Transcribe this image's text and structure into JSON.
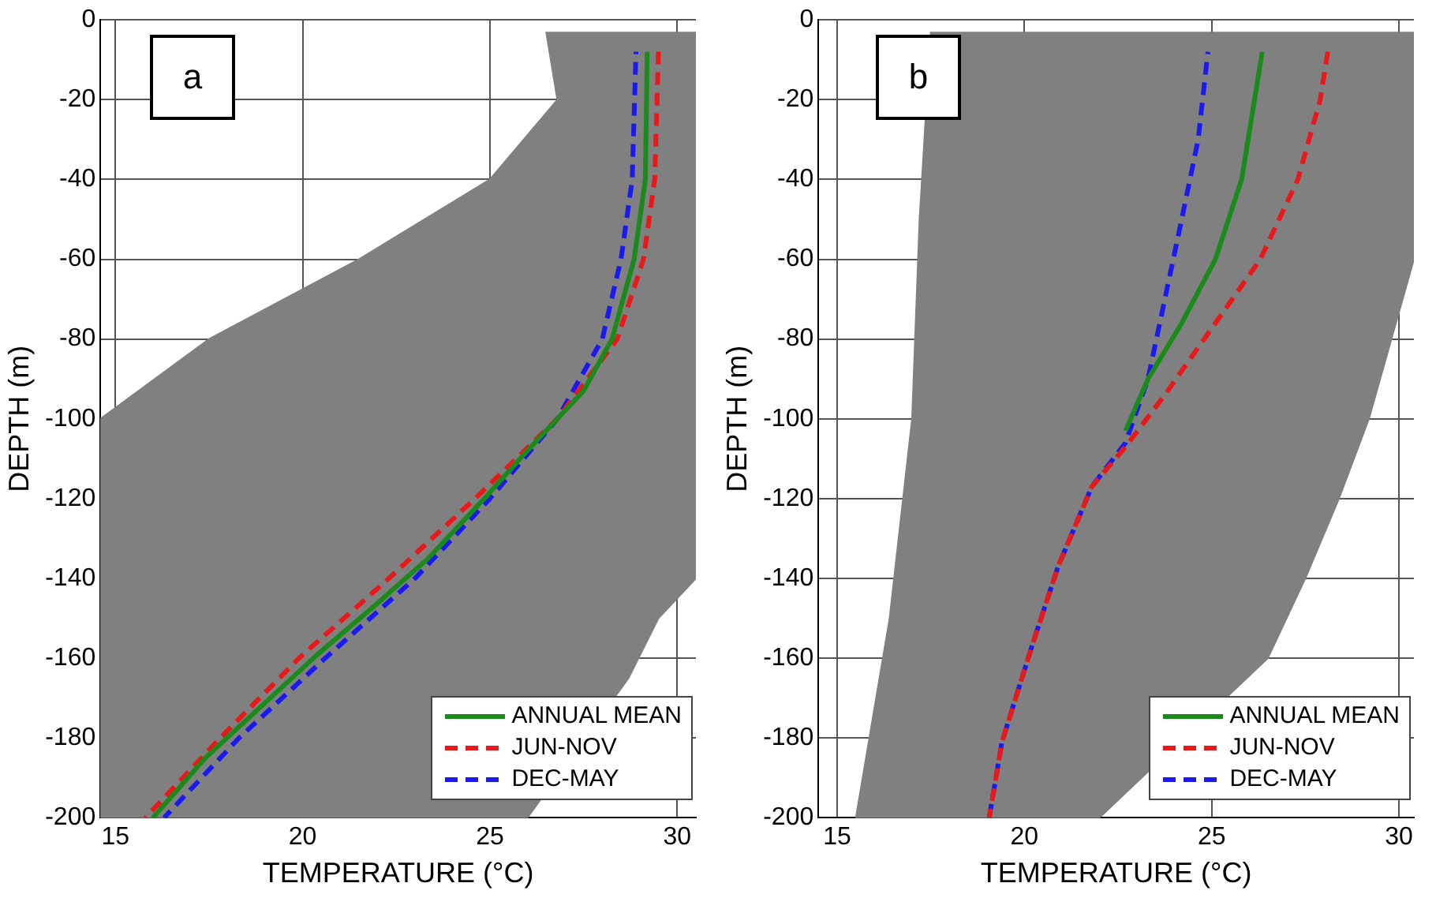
{
  "chart_data": [
    {
      "type": "line",
      "title": "a",
      "xlabel": "TEMPERATURE (°C)",
      "ylabel": "DEPTH (m)",
      "xlim": [
        14.6,
        30.5
      ],
      "xticks": [
        15,
        20,
        25,
        30
      ],
      "ylim": [
        -200,
        0
      ],
      "yticks": [
        -200,
        -180,
        -160,
        -140,
        -120,
        -100,
        -80,
        -60,
        -40,
        -20,
        0
      ],
      "grid": true,
      "legend": "bottom right",
      "marker": "none",
      "series": [
        {
          "type": "area",
          "color": "#808080",
          "x": [
            26.5,
            26.8,
            25,
            21.5,
            17.5,
            14.6,
            14.6,
            26,
            28.7,
            29.5,
            30.5,
            30.5
          ],
          "values": [
            -3,
            -20,
            -40,
            -60,
            -80,
            -100,
            -200,
            -200,
            -165,
            -150,
            -140,
            -3
          ]
        },
        {
          "name": "ANNUAL MEAN",
          "color": "#1a8a1a",
          "line_style": "solid",
          "x": [
            29.2,
            29.15,
            28.85,
            28.26,
            27.5,
            26.8,
            25.9,
            24.85,
            23.35,
            21.9,
            20.4,
            18.9,
            17.4,
            16.0
          ],
          "values": [
            -8,
            -40,
            -60,
            -80,
            -93,
            -100,
            -109,
            -120,
            -135,
            -147,
            -159,
            -172,
            -185,
            -200
          ]
        },
        {
          "name": "JUN-NOV",
          "color": "#e8191a",
          "line_style": "dashed",
          "x": [
            29.5,
            29.4,
            29.1,
            28.4,
            26.8,
            24.6,
            22.3,
            19.9,
            17.8,
            15.8
          ],
          "values": [
            -8,
            -40,
            -60,
            -80,
            -100,
            -120,
            -140,
            -160,
            -180,
            -200
          ]
        },
        {
          "name": "DEC-MAY",
          "color": "#1a1aee",
          "line_style": "dashed",
          "x": [
            28.9,
            28.8,
            28.5,
            28.0,
            26.8,
            25.0,
            23.0,
            20.6,
            18.3,
            16.3
          ],
          "values": [
            -8,
            -40,
            -60,
            -80,
            -100,
            -120,
            -140,
            -160,
            -180,
            -200
          ]
        }
      ]
    },
    {
      "type": "line",
      "title": "b",
      "xlabel": "TEMPERATURE (°C)",
      "ylabel": "DEPTH (m)",
      "xlim": [
        14.5,
        30.4
      ],
      "xticks": [
        15,
        20,
        25,
        30
      ],
      "ylim": [
        -200,
        0
      ],
      "yticks": [
        -200,
        -180,
        -160,
        -140,
        -120,
        -100,
        -80,
        -60,
        -40,
        -20,
        0
      ],
      "grid": true,
      "legend": "bottom right",
      "marker": "none",
      "series": [
        {
          "type": "area",
          "color": "#808080",
          "x": [
            17.5,
            17.2,
            17,
            16.4,
            15.5,
            22,
            26.5,
            27.5,
            28.4,
            29.2,
            29.8,
            30.4,
            30.4
          ],
          "values": [
            -3,
            -50,
            -100,
            -150,
            -200,
            -200,
            -160,
            -140,
            -120,
            -100,
            -80,
            -60,
            -3
          ]
        },
        {
          "name": "ANNUAL MEAN",
          "color": "#1a8a1a",
          "line_style": "solid",
          "x": [
            26.35,
            25.8,
            25.1,
            24.2,
            23.3,
            22.7
          ],
          "values": [
            -8,
            -40,
            -60,
            -76,
            -90,
            -103
          ]
        },
        {
          "name": "JUN-NOV",
          "color": "#e8191a",
          "line_style": "dashed",
          "x": [
            28.1,
            27.9,
            27.3,
            26.3,
            24.8,
            23.75,
            22.7,
            21.8,
            20.9,
            20.2,
            19.4,
            19.06
          ],
          "values": [
            -8,
            -20,
            -40,
            -60,
            -80,
            -94,
            -107,
            -117,
            -137,
            -157,
            -181,
            -200
          ]
        },
        {
          "name": "DEC-MAY",
          "color": "#1a1aee",
          "line_style": "dashed",
          "x": [
            24.9,
            24.64,
            24.2,
            23.75,
            23.3,
            22.7,
            21.8,
            20.9,
            20.2,
            19.4,
            19.06
          ],
          "values": [
            -8,
            -30,
            -50,
            -70,
            -90,
            -106,
            -117,
            -137,
            -157,
            -181,
            -200
          ]
        }
      ]
    }
  ]
}
